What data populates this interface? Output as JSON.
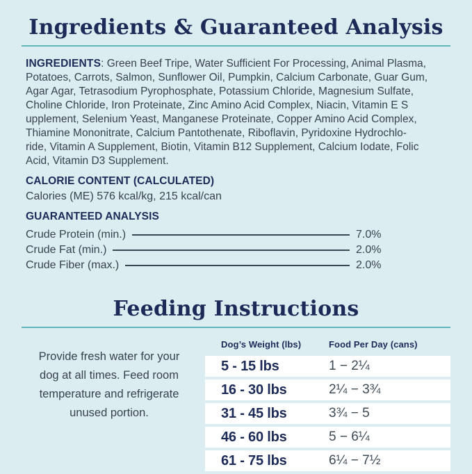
{
  "colors": {
    "background": "#dcedf2",
    "navy": "#1c2a58",
    "teal_rule": "#5cb6ba",
    "body_text": "#37424e",
    "row_background": "#ffffff"
  },
  "ingredients_section": {
    "title": "Ingredients & Guaranteed Analysis",
    "ingredients_label": "INGREDIENTS",
    "ingredients_lines": [
      ": Green Beef Tripe, Water Sufficient For Processing, Animal Plasma,",
      "Potatoes, Carrots, Salmon, Sunflower Oil, Pumpkin, Calcium Carbonate, Guar Gum,",
      "Agar Agar, Tetrasodium Pyrophosphate, Potassium Chloride, Magnesium Sulfate,",
      "Choline Chloride, Iron Proteinate, Zinc Amino Acid Complex, Niacin, Vitamin E S",
      "upplement, Selenium Yeast, Manganese Proteinate, Copper Amino Acid Complex,",
      "Thiamine Mononitrate, Calcium Pantothenate, Riboflavin, Pyridoxine Hydrochlo-",
      "ride, Vitamin A Supplement, Biotin, Vitamin B12 Supplement, Calcium Iodate, Folic",
      "Acid, Vitamin D3 Supplement."
    ],
    "calorie_heading": "CALORIE CONTENT (CALCULATED)",
    "calorie_text": "Calories (ME) 576 kcal/kg, 215 kcal/can",
    "analysis_heading": "GUARANTEED ANALYSIS",
    "analysis_rows": [
      {
        "label": "Crude Protein (min.)",
        "value": "7.0%"
      },
      {
        "label": "Crude Fat (min.)",
        "value": "2.0%"
      },
      {
        "label": "Crude Fiber (max.)",
        "value": "2.0%"
      }
    ]
  },
  "feeding_section": {
    "title": "Feeding Instructions",
    "note": "Provide fresh water for your dog at all times. Feed room temperature and refrigerate unused portion.",
    "table": {
      "weight_header": "Dog’s Weight (lbs)",
      "food_header": "Food Per Day (cans)",
      "rows": [
        {
          "weight": "5 - 15 lbs",
          "food": "1 − 2¼"
        },
        {
          "weight": "16 - 30 lbs",
          "food": "2¼ − 3¾"
        },
        {
          "weight": "31 - 45 lbs",
          "food": "3¾ − 5"
        },
        {
          "weight": "46 - 60 lbs",
          "food": "5 − 6¼"
        },
        {
          "weight": "61 - 75 lbs",
          "food": "6¼ − 7½"
        }
      ]
    }
  }
}
